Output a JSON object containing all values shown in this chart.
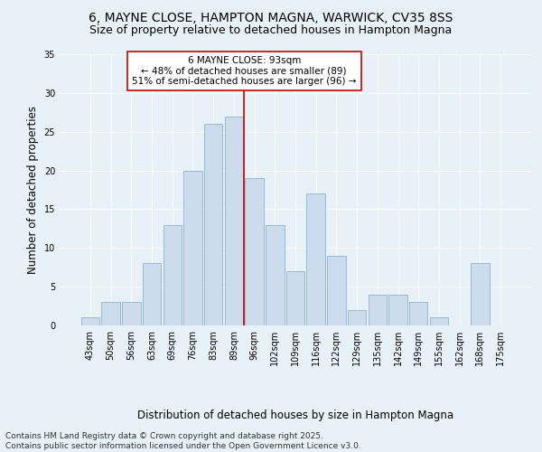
{
  "title_line1": "6, MAYNE CLOSE, HAMPTON MAGNA, WARWICK, CV35 8SS",
  "title_line2": "Size of property relative to detached houses in Hampton Magna",
  "xlabel": "Distribution of detached houses by size in Hampton Magna",
  "ylabel": "Number of detached properties",
  "categories": [
    "43sqm",
    "50sqm",
    "56sqm",
    "63sqm",
    "69sqm",
    "76sqm",
    "83sqm",
    "89sqm",
    "96sqm",
    "102sqm",
    "109sqm",
    "116sqm",
    "122sqm",
    "129sqm",
    "135sqm",
    "142sqm",
    "149sqm",
    "155sqm",
    "162sqm",
    "168sqm",
    "175sqm"
  ],
  "values": [
    1,
    3,
    3,
    8,
    13,
    20,
    26,
    27,
    19,
    13,
    7,
    17,
    9,
    2,
    4,
    4,
    3,
    1,
    0,
    8,
    0
  ],
  "bar_color": "#ccdcec",
  "bar_edge_color": "#8ab4d4",
  "vline_color": "#cc0000",
  "annotation_text": "6 MAYNE CLOSE: 93sqm\n← 48% of detached houses are smaller (89)\n51% of semi-detached houses are larger (96) →",
  "annotation_box_color": "#ffffff",
  "annotation_box_edge": "#cc0000",
  "ylim": [
    0,
    35
  ],
  "yticks": [
    0,
    5,
    10,
    15,
    20,
    25,
    30,
    35
  ],
  "background_color": "#e8f0f8",
  "footer_line1": "Contains HM Land Registry data © Crown copyright and database right 2025.",
  "footer_line2": "Contains public sector information licensed under the Open Government Licence v3.0.",
  "title_fontsize": 10,
  "subtitle_fontsize": 9,
  "axis_label_fontsize": 8.5,
  "tick_fontsize": 7,
  "annotation_fontsize": 7.5,
  "footer_fontsize": 6.5
}
